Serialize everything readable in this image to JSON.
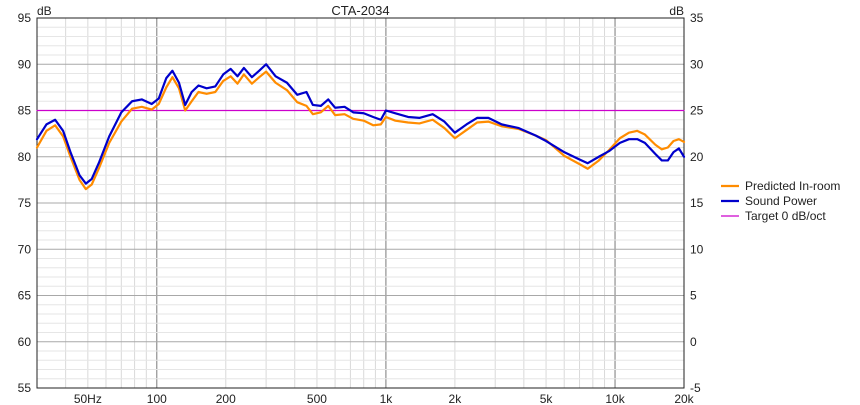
{
  "chart_data": {
    "type": "line",
    "title": "CTA-2034",
    "ylabel_left": "dB",
    "ylabel_right": "dB",
    "x_scale": "log",
    "xlim": [
      30,
      20000
    ],
    "ylim_left": [
      55,
      95
    ],
    "ylim_right": [
      -5,
      35
    ],
    "grid": true,
    "legend_position": "right",
    "x_tick_labels": [
      {
        "value": 50,
        "label": "50Hz"
      },
      {
        "value": 100,
        "label": "100"
      },
      {
        "value": 200,
        "label": "200"
      },
      {
        "value": 500,
        "label": "500"
      },
      {
        "value": 1000,
        "label": "1k"
      },
      {
        "value": 2000,
        "label": "2k"
      },
      {
        "value": 5000,
        "label": "5k"
      },
      {
        "value": 10000,
        "label": "10k"
      },
      {
        "value": 20000,
        "label": "20k"
      }
    ],
    "y_ticks_left": [
      55,
      60,
      65,
      70,
      75,
      80,
      85,
      90,
      95
    ],
    "y_ticks_right": [
      -5,
      0,
      5,
      10,
      15,
      20,
      25,
      30,
      35
    ],
    "series": [
      {
        "name": "Predicted In-room",
        "color": "#ff8c00",
        "points": [
          [
            30,
            81.0
          ],
          [
            33,
            82.8
          ],
          [
            36,
            83.4
          ],
          [
            39,
            82.2
          ],
          [
            42,
            80.0
          ],
          [
            46,
            77.5
          ],
          [
            49,
            76.5
          ],
          [
            52,
            77.0
          ],
          [
            56,
            78.8
          ],
          [
            62,
            81.5
          ],
          [
            70,
            83.8
          ],
          [
            78,
            85.2
          ],
          [
            86,
            85.4
          ],
          [
            95,
            85.1
          ],
          [
            102,
            85.7
          ],
          [
            110,
            87.5
          ],
          [
            117,
            88.6
          ],
          [
            125,
            87.4
          ],
          [
            133,
            85.0
          ],
          [
            142,
            86.0
          ],
          [
            152,
            87.0
          ],
          [
            165,
            86.8
          ],
          [
            180,
            87.0
          ],
          [
            195,
            88.2
          ],
          [
            210,
            88.7
          ],
          [
            225,
            87.9
          ],
          [
            240,
            88.9
          ],
          [
            260,
            87.9
          ],
          [
            280,
            88.6
          ],
          [
            300,
            89.2
          ],
          [
            330,
            88.0
          ],
          [
            370,
            87.2
          ],
          [
            410,
            85.9
          ],
          [
            450,
            85.5
          ],
          [
            480,
            84.6
          ],
          [
            520,
            84.8
          ],
          [
            560,
            85.5
          ],
          [
            600,
            84.5
          ],
          [
            660,
            84.6
          ],
          [
            720,
            84.1
          ],
          [
            800,
            83.9
          ],
          [
            880,
            83.4
          ],
          [
            950,
            83.5
          ],
          [
            1000,
            84.3
          ],
          [
            1100,
            83.9
          ],
          [
            1250,
            83.7
          ],
          [
            1400,
            83.6
          ],
          [
            1600,
            84.0
          ],
          [
            1800,
            83.1
          ],
          [
            2000,
            82.0
          ],
          [
            2250,
            82.9
          ],
          [
            2500,
            83.7
          ],
          [
            2800,
            83.8
          ],
          [
            3200,
            83.3
          ],
          [
            3800,
            83.0
          ],
          [
            4500,
            82.3
          ],
          [
            5000,
            81.8
          ],
          [
            6000,
            80.1
          ],
          [
            7000,
            79.2
          ],
          [
            7600,
            78.7
          ],
          [
            8500,
            79.6
          ],
          [
            9400,
            80.7
          ],
          [
            10500,
            82.0
          ],
          [
            11500,
            82.6
          ],
          [
            12500,
            82.8
          ],
          [
            13500,
            82.4
          ],
          [
            15000,
            81.3
          ],
          [
            16000,
            80.8
          ],
          [
            17000,
            81.0
          ],
          [
            18000,
            81.7
          ],
          [
            19000,
            81.9
          ],
          [
            20000,
            81.6
          ]
        ]
      },
      {
        "name": "Sound Power",
        "color": "#0000cc",
        "points": [
          [
            30,
            81.9
          ],
          [
            33,
            83.5
          ],
          [
            36,
            84.0
          ],
          [
            39,
            82.8
          ],
          [
            42,
            80.5
          ],
          [
            46,
            78.0
          ],
          [
            49,
            77.1
          ],
          [
            52,
            77.6
          ],
          [
            56,
            79.4
          ],
          [
            62,
            82.2
          ],
          [
            70,
            84.8
          ],
          [
            78,
            86.0
          ],
          [
            86,
            86.2
          ],
          [
            95,
            85.7
          ],
          [
            102,
            86.3
          ],
          [
            110,
            88.5
          ],
          [
            117,
            89.3
          ],
          [
            125,
            88.0
          ],
          [
            133,
            85.6
          ],
          [
            142,
            87.0
          ],
          [
            152,
            87.7
          ],
          [
            165,
            87.4
          ],
          [
            180,
            87.6
          ],
          [
            195,
            88.9
          ],
          [
            210,
            89.5
          ],
          [
            225,
            88.7
          ],
          [
            240,
            89.6
          ],
          [
            260,
            88.6
          ],
          [
            280,
            89.3
          ],
          [
            300,
            90.0
          ],
          [
            330,
            88.7
          ],
          [
            370,
            88.0
          ],
          [
            410,
            86.7
          ],
          [
            450,
            87.0
          ],
          [
            480,
            85.6
          ],
          [
            520,
            85.5
          ],
          [
            560,
            86.2
          ],
          [
            600,
            85.3
          ],
          [
            660,
            85.4
          ],
          [
            720,
            84.8
          ],
          [
            800,
            84.7
          ],
          [
            880,
            84.3
          ],
          [
            950,
            84.0
          ],
          [
            1000,
            85.0
          ],
          [
            1100,
            84.7
          ],
          [
            1250,
            84.3
          ],
          [
            1400,
            84.2
          ],
          [
            1600,
            84.6
          ],
          [
            1800,
            83.8
          ],
          [
            2000,
            82.6
          ],
          [
            2250,
            83.5
          ],
          [
            2500,
            84.2
          ],
          [
            2800,
            84.2
          ],
          [
            3200,
            83.5
          ],
          [
            3800,
            83.1
          ],
          [
            4500,
            82.3
          ],
          [
            5000,
            81.7
          ],
          [
            6000,
            80.5
          ],
          [
            7000,
            79.7
          ],
          [
            7600,
            79.3
          ],
          [
            8500,
            80.0
          ],
          [
            9400,
            80.6
          ],
          [
            10500,
            81.5
          ],
          [
            11500,
            81.9
          ],
          [
            12500,
            81.9
          ],
          [
            13500,
            81.5
          ],
          [
            15000,
            80.3
          ],
          [
            16000,
            79.6
          ],
          [
            17000,
            79.6
          ],
          [
            18000,
            80.5
          ],
          [
            19000,
            80.9
          ],
          [
            20000,
            80.0
          ]
        ]
      },
      {
        "name": "Target 0 dB/oct",
        "color": "#cc00cc",
        "points": [
          [
            30,
            85.0
          ],
          [
            20000,
            85.0
          ]
        ]
      }
    ]
  }
}
